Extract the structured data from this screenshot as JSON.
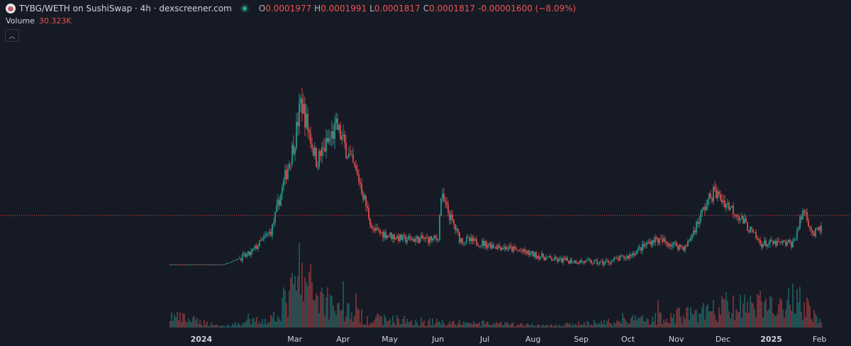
{
  "header": {
    "title": "TYBG/WETH on SushiSwap · 4h · dexscreener.com",
    "open_key": "O",
    "open": "0.0001977",
    "high_key": "H",
    "high": "0.0001991",
    "low_key": "L",
    "low": "0.0001817",
    "close_key": "C",
    "close": "0.0001817",
    "change": "-0.00001600 (−8.09%)"
  },
  "volume": {
    "label": "Volume",
    "value": "30.323K"
  },
  "colors": {
    "background": "#161a25",
    "up": "#26a69a",
    "down": "#ef5350",
    "axis_text": "#d1d4dc"
  },
  "icons": {
    "collapse": "chevron-up-icon",
    "logo": "token-logo-icon",
    "status": "status-dot-icon"
  },
  "chart_data": {
    "type": "candlestick",
    "xlabel": "",
    "ylabel": "",
    "x_range": [
      "2023-12-12",
      "2025-02-03"
    ],
    "y_range_approx": [
      9e-05,
      0.00055
    ],
    "x_tick_labels": [
      "2024",
      "Mar",
      "Apr",
      "May",
      "Jun",
      "Jul",
      "Aug",
      "Sep",
      "Oct",
      "Nov",
      "Dec",
      "2025",
      "Feb"
    ],
    "x_tick_dates": [
      "2024-01-01",
      "2024-03-01",
      "2024-04-01",
      "2024-05-01",
      "2024-06-01",
      "2024-07-01",
      "2024-08-01",
      "2024-09-01",
      "2024-10-01",
      "2024-11-01",
      "2024-12-01",
      "2025-01-01",
      "2025-02-01"
    ],
    "last_close": 0.0001817,
    "price_trend_approx": [
      {
        "date": "2023-12-12",
        "price": 0.000101
      },
      {
        "date": "2024-01-15",
        "price": 0.000101
      },
      {
        "date": "2024-02-01",
        "price": 0.000125
      },
      {
        "date": "2024-02-15",
        "price": 0.00018
      },
      {
        "date": "2024-03-01",
        "price": 0.00039
      },
      {
        "date": "2024-03-05",
        "price": 0.00048
      },
      {
        "date": "2024-03-15",
        "price": 0.00034
      },
      {
        "date": "2024-03-28",
        "price": 0.00042
      },
      {
        "date": "2024-04-12",
        "price": 0.00029
      },
      {
        "date": "2024-04-20",
        "price": 0.00018
      },
      {
        "date": "2024-05-10",
        "price": 0.00016
      },
      {
        "date": "2024-06-01",
        "price": 0.00016
      },
      {
        "date": "2024-06-03",
        "price": 0.00026
      },
      {
        "date": "2024-06-15",
        "price": 0.00016
      },
      {
        "date": "2024-07-15",
        "price": 0.00014
      },
      {
        "date": "2024-08-15",
        "price": 0.000112
      },
      {
        "date": "2024-09-15",
        "price": 0.000105
      },
      {
        "date": "2024-10-01",
        "price": 0.00012
      },
      {
        "date": "2024-10-18",
        "price": 0.00016
      },
      {
        "date": "2024-11-07",
        "price": 0.00014
      },
      {
        "date": "2024-11-20",
        "price": 0.00024
      },
      {
        "date": "2024-11-25",
        "price": 0.00027
      },
      {
        "date": "2024-12-10",
        "price": 0.00022
      },
      {
        "date": "2024-12-25",
        "price": 0.00015
      },
      {
        "date": "2025-01-15",
        "price": 0.00015
      },
      {
        "date": "2025-01-22",
        "price": 0.00023
      },
      {
        "date": "2025-01-28",
        "price": 0.00017
      },
      {
        "date": "2025-02-01",
        "price": 0.000182
      }
    ],
    "volume_trend_approx": [
      {
        "date": "2023-12-12",
        "value": 0.25
      },
      {
        "date": "2024-01-15",
        "value": 0.03
      },
      {
        "date": "2024-02-15",
        "value": 0.2
      },
      {
        "date": "2024-03-05",
        "value": 1.0
      },
      {
        "date": "2024-03-25",
        "value": 0.55
      },
      {
        "date": "2024-04-15",
        "value": 0.2
      },
      {
        "date": "2024-06-01",
        "value": 0.12
      },
      {
        "date": "2024-08-15",
        "value": 0.04
      },
      {
        "date": "2024-10-15",
        "value": 0.2
      },
      {
        "date": "2024-11-20",
        "value": 0.35
      },
      {
        "date": "2025-01-20",
        "value": 0.6
      },
      {
        "date": "2025-02-01",
        "value": 0.15
      }
    ]
  }
}
